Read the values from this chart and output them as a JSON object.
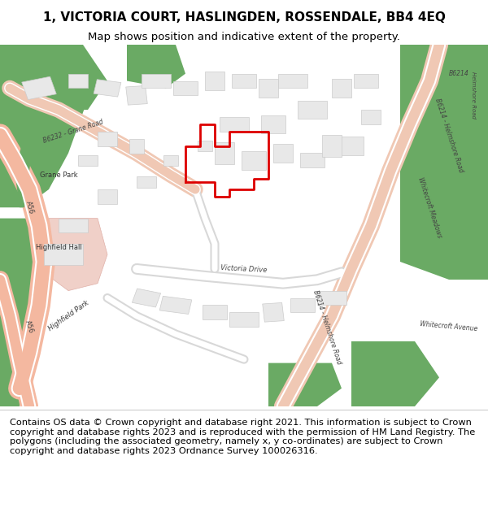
{
  "title_line1": "1, VICTORIA COURT, HASLINGDEN, ROSSENDALE, BB4 4EQ",
  "title_line2": "Map shows position and indicative extent of the property.",
  "title_fontsize": 11,
  "subtitle_fontsize": 9.5,
  "copyright_text": "Contains OS data © Crown copyright and database right 2021. This information is subject to Crown copyright and database rights 2023 and is reproduced with the permission of HM Land Registry. The polygons (including the associated geometry, namely x, y co-ordinates) are subject to Crown copyright and database rights 2023 Ordnance Survey 100026316.",
  "copyright_fontsize": 8.2,
  "map_bg": "#f8f8f8",
  "road_salmon": "#f0c8b4",
  "road_peach": "#f4b8a0",
  "road_orange": "#e8a080",
  "green_dark": "#6aaa64",
  "green_light": "#c8e0b0",
  "green_pale": "#d8ecc8",
  "building_fill": "#e8e8e8",
  "building_stroke": "#cccccc",
  "plot_stroke": "#dd0000",
  "text_color": "#333333",
  "divider_color": "#cccccc"
}
